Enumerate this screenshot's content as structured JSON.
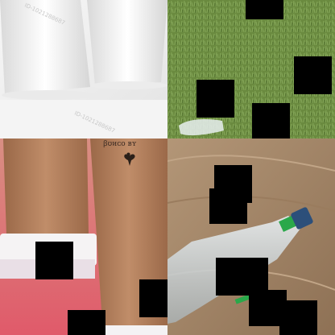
{
  "tiles": [
    {
      "name": "white-cups",
      "watermark_top": "ID-1021288687",
      "watermark_bottom": "ID-1021288687"
    },
    {
      "name": "grass-bottle"
    },
    {
      "name": "kraft-cups"
    },
    {
      "name": "crushed-bottle"
    }
  ],
  "colors": {
    "grass": "#6a8a3f",
    "wood": "#a8896b",
    "kraft": "#b58260",
    "cup_white": "#f2f2f2",
    "cap_green": "#2aa84a"
  }
}
